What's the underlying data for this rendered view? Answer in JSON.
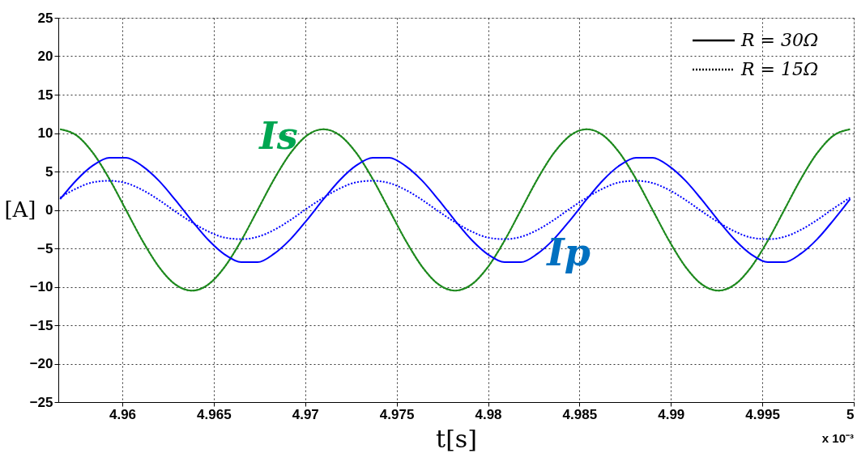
{
  "chart_data": {
    "type": "line",
    "xlabel": "t[s]",
    "ylabel": "[A]",
    "xlim": [
      4.9565,
      5
    ],
    "ylim": [
      -25,
      25
    ],
    "xticks": [
      4.96,
      4.965,
      4.97,
      4.975,
      4.98,
      4.985,
      4.99,
      4.995,
      5
    ],
    "yticks": [
      -25,
      -20,
      -15,
      -10,
      -5,
      0,
      5,
      10,
      15,
      20,
      25
    ],
    "grid": true,
    "x": [
      4.9566,
      4.9575,
      4.9584,
      4.9593,
      4.9602,
      4.9611,
      4.962,
      4.9629,
      4.9638,
      4.9647,
      4.9656,
      4.9665,
      4.9674,
      4.9683,
      4.9692,
      4.9701,
      4.971,
      4.9719,
      4.9728,
      4.9737,
      4.9746,
      4.9755,
      4.9764,
      4.9773,
      4.9782,
      4.9791,
      4.98,
      4.9809,
      4.9818,
      4.9827,
      4.9836,
      4.9845,
      4.9854,
      4.9863,
      4.9872,
      4.9881,
      4.989,
      4.9899,
      4.9908,
      4.9917,
      4.9926,
      4.9935,
      4.9944,
      4.9953,
      4.9962,
      4.9971,
      4.998,
      4.9989,
      4.9998
    ],
    "series": [
      {
        "color": "#1f8a1f",
        "line_style": "solid",
        "values": [
          10.5,
          9.7,
          7.4,
          4,
          0,
          -4,
          -7.4,
          -9.7,
          -10.5,
          -9.7,
          -7.4,
          -4,
          0,
          4,
          7.4,
          9.7,
          10.5,
          9.7,
          7.4,
          4,
          0,
          -4,
          -7.4,
          -9.7,
          -10.5,
          -9.7,
          -7.4,
          -4,
          0,
          4,
          7.4,
          9.7,
          10.5,
          9.7,
          7.4,
          4,
          0,
          -4,
          -7.4,
          -9.7,
          -10.5,
          -9.7,
          -7.4,
          -4,
          0,
          4,
          7.4,
          9.7,
          10.5
        ]
      },
      {
        "color": "#1f8a1f",
        "line_style": "dotted",
        "values": [
          10.5,
          9.7,
          7.4,
          4,
          0,
          -4,
          -7.4,
          -9.7,
          -10.5,
          -9.7,
          -7.4,
          -4,
          0,
          4,
          7.4,
          9.7,
          10.5,
          9.7,
          7.4,
          4,
          0,
          -4,
          -7.4,
          -9.7,
          -10.5,
          -9.7,
          -7.4,
          -4,
          0,
          4,
          7.4,
          9.7,
          10.5,
          9.7,
          7.4,
          4,
          0,
          -4,
          -7.4,
          -9.7,
          -10.5,
          -9.7,
          -7.4,
          -4,
          0,
          4,
          7.4,
          9.7,
          10.5
        ]
      },
      {
        "color": "#0000ff",
        "line_style": "solid",
        "values": [
          1.4,
          3.9,
          5.8,
          6.8,
          6.8,
          5.7,
          3.8,
          1.3,
          -1.4,
          -3.9,
          -5.8,
          -6.8,
          -6.8,
          -5.7,
          -3.8,
          -1.3,
          1.4,
          3.9,
          5.8,
          6.8,
          6.8,
          5.7,
          3.8,
          1.3,
          -1.4,
          -3.9,
          -5.8,
          -6.8,
          -6.8,
          -5.7,
          -3.8,
          -1.3,
          1.4,
          3.9,
          5.8,
          6.8,
          6.8,
          5.7,
          3.8,
          1.3,
          -1.4,
          -3.9,
          -5.8,
          -6.8,
          -6.8,
          -5.7,
          -3.8,
          -1.3,
          1.4
        ]
      },
      {
        "color": "#0000ff",
        "line_style": "dotted",
        "values": [
          1.6,
          2.8,
          3.6,
          3.8,
          3.5,
          2.6,
          1.3,
          -0.2,
          -1.6,
          -2.8,
          -3.6,
          -3.8,
          -3.5,
          -2.6,
          -1.3,
          0.2,
          1.6,
          2.8,
          3.6,
          3.8,
          3.5,
          2.6,
          1.3,
          -0.2,
          -1.6,
          -2.8,
          -3.6,
          -3.8,
          -3.5,
          -2.6,
          -1.3,
          0.2,
          1.6,
          2.8,
          3.6,
          3.8,
          3.5,
          2.6,
          1.3,
          -0.2,
          -1.6,
          -2.8,
          -3.6,
          -3.8,
          -3.5,
          -2.6,
          -1.3,
          0.2,
          1.6
        ]
      }
    ],
    "annotations": [
      "Is",
      "Ip",
      "R = 30Ω",
      "R = 15Ω",
      "x 10⁻³"
    ]
  }
}
